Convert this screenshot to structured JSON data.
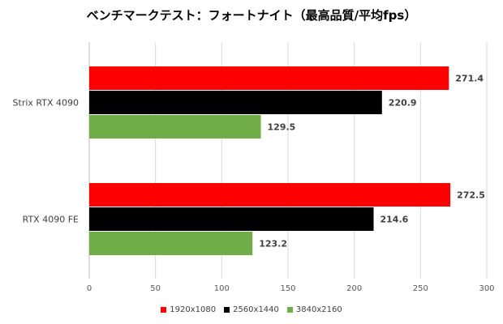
{
  "chart_data": {
    "type": "bar",
    "orientation": "horizontal",
    "title": "ベンチマークテスト：フォートナイト（最高品質/平均fps）",
    "categories": [
      "Strix RTX 4090",
      "RTX 4090 FE"
    ],
    "series": [
      {
        "name": "1920x1080",
        "color": "#ff0000",
        "values": [
          271.4,
          272.5
        ]
      },
      {
        "name": "2560x1440",
        "color": "#000000",
        "values": [
          220.9,
          214.6
        ]
      },
      {
        "name": "3840x2160",
        "color": "#70ad47",
        "values": [
          129.5,
          123.2
        ]
      }
    ],
    "data_labels": [
      [
        "271.4",
        "272.5"
      ],
      [
        "220.9",
        "214.6"
      ],
      [
        "129.5",
        "123.2"
      ]
    ],
    "xlim": [
      0,
      300
    ],
    "xticks": [
      "0",
      "50",
      "100",
      "150",
      "200",
      "250",
      "300"
    ],
    "grid": "vertical",
    "legend": "bottom"
  }
}
